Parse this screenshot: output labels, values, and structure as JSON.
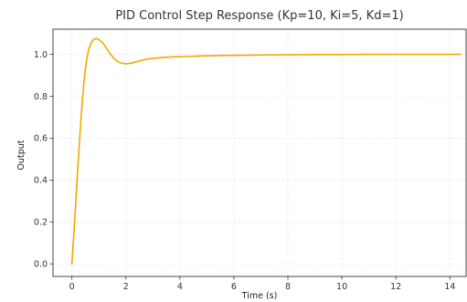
{
  "chart_data": {
    "type": "line",
    "title": "PID Control Step Response (Kp=10, Ki=5, Kd=1)",
    "xlabel": "Time (s)",
    "ylabel": "Output",
    "xlim": [
      -0.7,
      14.6
    ],
    "ylim": [
      -0.06,
      1.12
    ],
    "xticks": [
      0,
      2,
      4,
      6,
      8,
      10,
      12,
      14
    ],
    "xtick_labels": [
      "0",
      "2",
      "4",
      "6",
      "8",
      "10",
      "12",
      "14"
    ],
    "yticks": [
      0.0,
      0.2,
      0.4,
      0.6,
      0.8,
      1.0
    ],
    "ytick_labels": [
      "0.0",
      "0.2",
      "0.4",
      "0.6",
      "0.8",
      "1.0"
    ],
    "grid": true,
    "series": [
      {
        "color": "#f2a900",
        "x": [
          0,
          0.1,
          0.2,
          0.3,
          0.4,
          0.5,
          0.6,
          0.7,
          0.8,
          0.9,
          1.0,
          1.1,
          1.2,
          1.3,
          1.4,
          1.5,
          1.6,
          1.8,
          2.0,
          2.2,
          2.4,
          2.6,
          2.8,
          3.0,
          3.5,
          4.0,
          4.5,
          5.0,
          6.0,
          7.0,
          8.0,
          9.0,
          10.0,
          11.0,
          12.0,
          13.0,
          14.0,
          14.4
        ],
        "values": [
          0.0,
          0.2,
          0.42,
          0.62,
          0.8,
          0.93,
          1.01,
          1.05,
          1.07,
          1.075,
          1.07,
          1.06,
          1.045,
          1.025,
          1.005,
          0.99,
          0.975,
          0.96,
          0.955,
          0.958,
          0.965,
          0.972,
          0.977,
          0.981,
          0.986,
          0.989,
          0.991,
          0.993,
          0.995,
          0.997,
          0.998,
          0.999,
          0.999,
          1.0,
          1.0,
          1.0,
          1.0,
          1.0
        ]
      }
    ]
  }
}
